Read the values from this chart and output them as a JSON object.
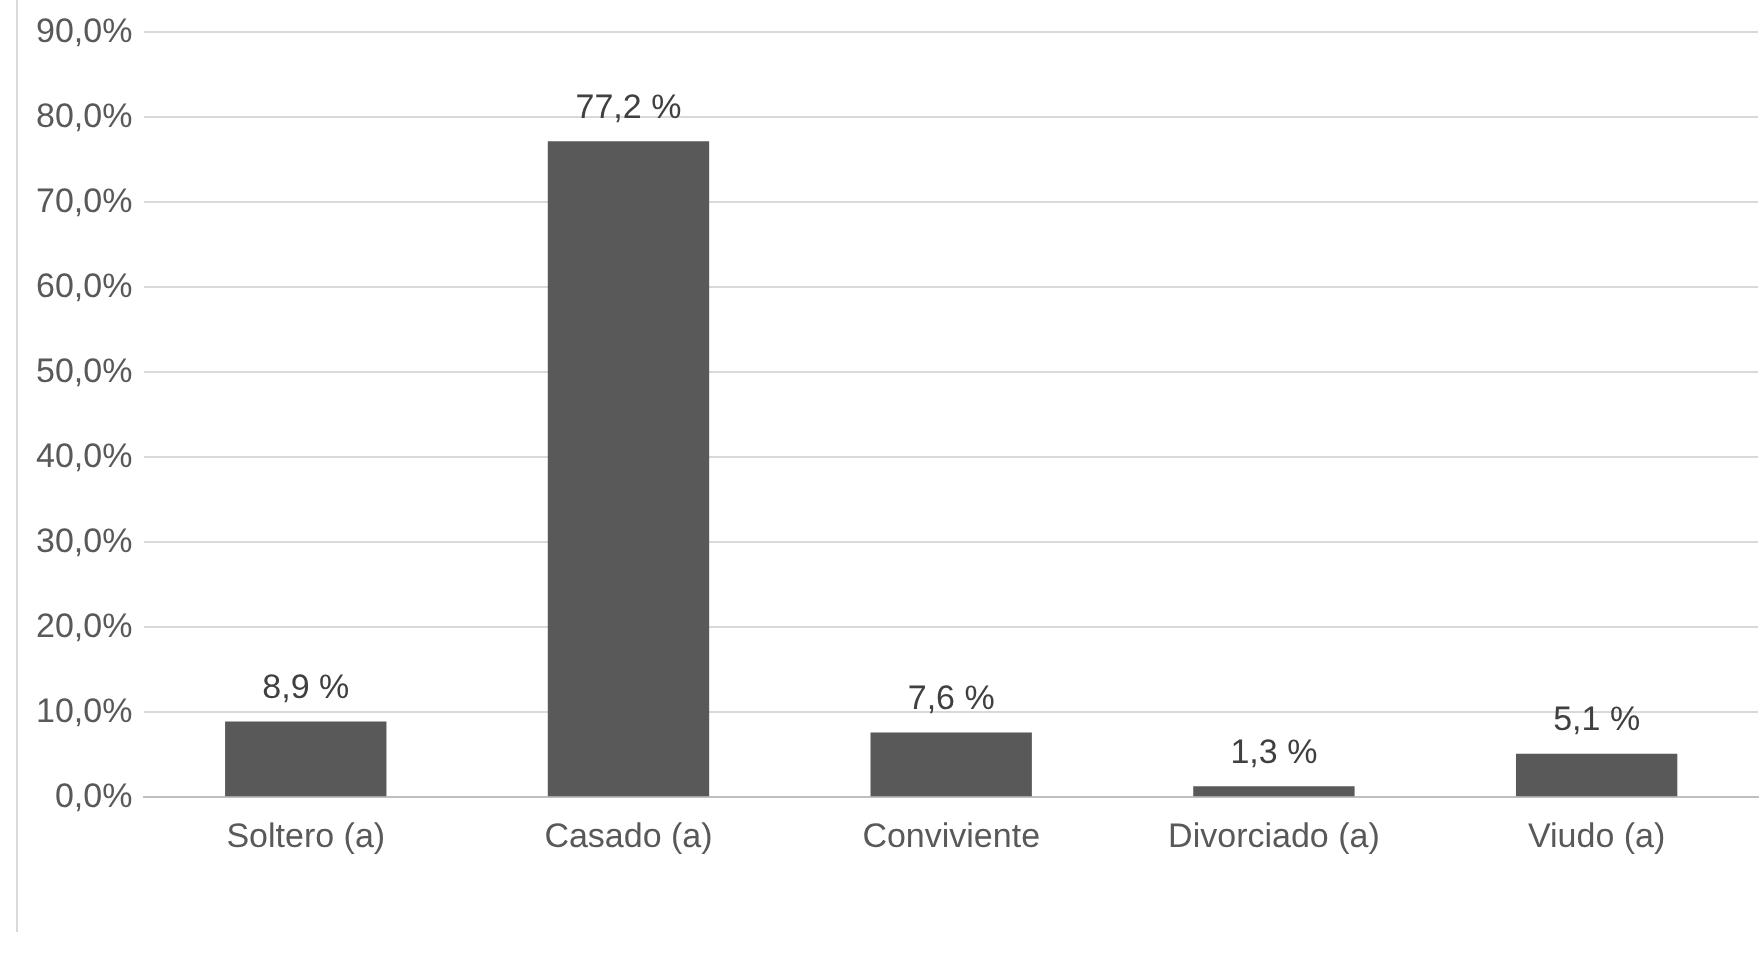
{
  "chart_data": {
    "type": "bar",
    "categories": [
      "Soltero (a)",
      "Casado (a)",
      "Conviviente",
      "Divorciado (a)",
      "Viudo (a)"
    ],
    "values": [
      8.9,
      77.2,
      7.6,
      1.3,
      5.1
    ],
    "value_labels": [
      "8,9 %",
      "77,2 %",
      "7,6 %",
      "1,3 %",
      "5,1 %"
    ],
    "color": "#595959",
    "ylim": [
      0,
      90
    ],
    "yticks": [
      {
        "value": 0,
        "label": "0,0%"
      },
      {
        "value": 10,
        "label": "10,0%"
      },
      {
        "value": 20,
        "label": "20,0%"
      },
      {
        "value": 30,
        "label": "30,0%"
      },
      {
        "value": 40,
        "label": "40,0%"
      },
      {
        "value": 50,
        "label": "50,0%"
      },
      {
        "value": 60,
        "label": "60,0%"
      },
      {
        "value": 70,
        "label": "70,0%"
      },
      {
        "value": 80,
        "label": "80,0%"
      },
      {
        "value": 90,
        "label": "90,0%"
      }
    ],
    "grid": "y"
  }
}
